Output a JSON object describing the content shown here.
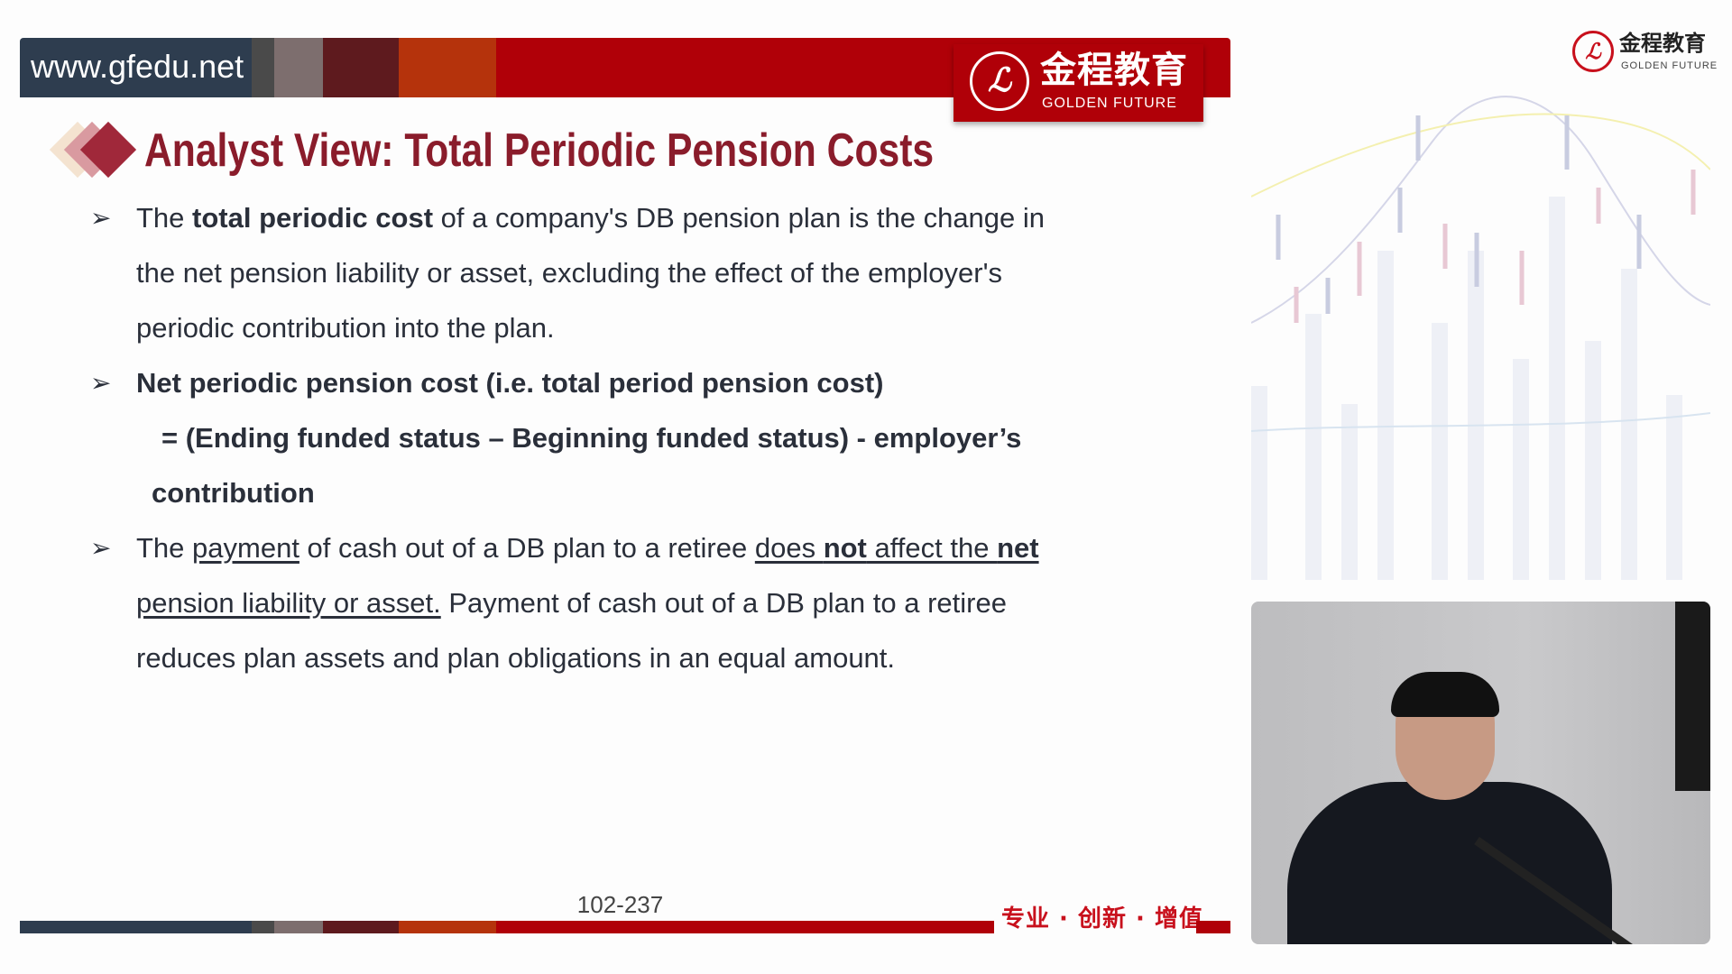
{
  "header": {
    "url": "www.gfedu.net",
    "logo_cn": "金程教育",
    "logo_en": "GOLDEN FUTURE",
    "bar_colors": [
      "#2e3d4f",
      "#4a4a4a",
      "#7d6e6e",
      "#5e1a1e",
      "#b5330c",
      "#b00008"
    ]
  },
  "corner_logo": {
    "cn": "金程教育",
    "en": "GOLDEN FUTURE"
  },
  "slide": {
    "title": "Analyst View: Total Periodic Pension Costs",
    "bullets": [
      {
        "lines": [
          [
            {
              "t": "The "
            },
            {
              "t": "total periodic cost",
              "b": true
            },
            {
              "t": " of a company's DB pension plan is the change in"
            }
          ],
          [
            {
              "t": "the net pension liability or asset, excluding the effect of the employer's"
            }
          ],
          [
            {
              "t": "periodic contribution into the plan."
            }
          ]
        ]
      },
      {
        "lines": [
          [
            {
              "t": "Net periodic pension cost (i.e. total period pension cost)",
              "b": true
            }
          ],
          [
            {
              "t": "= (Ending funded status – Beginning funded status) - employer’s",
              "b": true
            }
          ],
          [
            {
              "t": "contribution",
              "b": true
            }
          ]
        ]
      },
      {
        "lines": [
          [
            {
              "t": "The "
            },
            {
              "t": "payment",
              "u": true
            },
            {
              "t": " of cash out of a DB plan to a retiree "
            },
            {
              "t": "does ",
              "u": true
            },
            {
              "t": "not",
              "u": true,
              "b": true
            },
            {
              "t": " affect the ",
              "u": true
            },
            {
              "t": "net",
              "u": true,
              "b": true
            }
          ],
          [
            {
              "t": "pension liability or asset.",
              "u": true
            },
            {
              "t": " Payment of cash out of a DB plan to a retiree"
            }
          ],
          [
            {
              "t": "reduces plan assets and plan obligations in an equal amount."
            }
          ]
        ]
      }
    ],
    "page_number": "102-237",
    "slogan": "专业 · 创新 · 增值",
    "title_color": "#8a1c2b"
  }
}
